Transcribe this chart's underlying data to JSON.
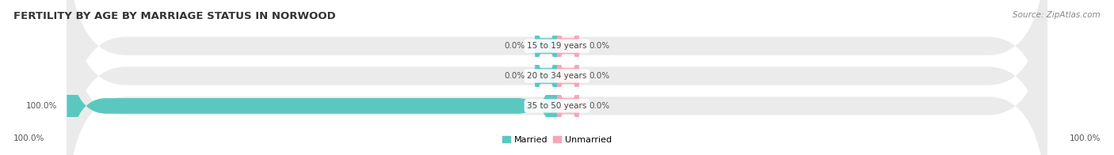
{
  "title": "FERTILITY BY AGE BY MARRIAGE STATUS IN NORWOOD",
  "source": "Source: ZipAtlas.com",
  "categories": [
    "15 to 19 years",
    "20 to 34 years",
    "35 to 50 years"
  ],
  "married_values": [
    0.0,
    0.0,
    100.0
  ],
  "unmarried_values": [
    0.0,
    0.0,
    0.0
  ],
  "married_color": "#5bc8c0",
  "unmarried_color": "#f4a7b9",
  "bar_bg_color": "#ebebeb",
  "background_color": "#ffffff",
  "title_fontsize": 9.5,
  "source_fontsize": 7.5,
  "bar_label_fontsize": 7.5,
  "legend_fontsize": 8,
  "axis_label_left": "100.0%",
  "axis_label_right": "100.0%",
  "axis_label_fontsize": 7.5
}
